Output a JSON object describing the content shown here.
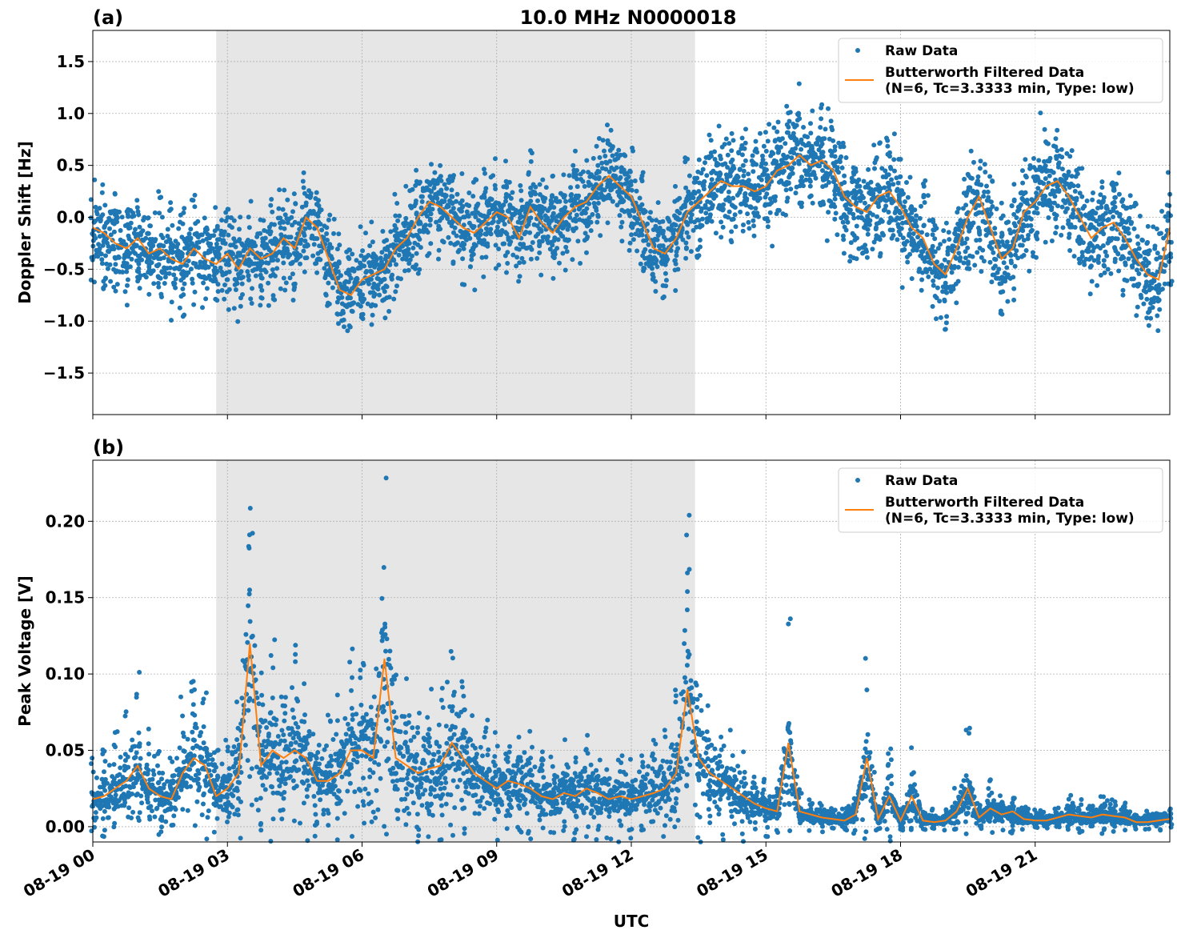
{
  "figure": {
    "title": "10.0 MHz N0000018",
    "xlabel": "UTC"
  },
  "colors": {
    "raw": "#1f77b4",
    "filtered": "#ff7f0e",
    "shade": "#e6e6e6",
    "grid": "#b0b0b0"
  },
  "chart_data": [
    {
      "type": "scatter",
      "panel_label": "(a)",
      "title": "10.0 MHz N0000018",
      "xlabel": "",
      "ylabel": "Doppler Shift [Hz]",
      "xlim_hours": [
        0,
        24
      ],
      "ylim": [
        -1.9,
        1.8
      ],
      "yticks": [
        -1.5,
        -1.0,
        -0.5,
        0.0,
        0.5,
        1.0,
        1.5
      ],
      "ytick_labels": [
        "−1.5",
        "−1.0",
        "−0.5",
        "0.0",
        "0.5",
        "1.0",
        "1.5"
      ],
      "xticks_hours": [
        0,
        3,
        6,
        9,
        12,
        15,
        18,
        21
      ],
      "xtick_labels": [
        "08-19 00",
        "08-19 03",
        "08-19 06",
        "08-19 09",
        "08-19 12",
        "08-19 15",
        "08-19 18",
        "08-19 21"
      ],
      "shaded_span_hours": [
        2.75,
        13.42
      ],
      "grid": true,
      "legend": {
        "placement": "top-right",
        "entries": [
          {
            "label": "Raw Data",
            "marker": "dot"
          },
          {
            "label": "Butterworth Filtered Data",
            "label2": "(N=6, Tc=3.3333 min, Type: low)",
            "marker": "line"
          }
        ]
      },
      "series": [
        {
          "name": "Butterworth Filtered Data",
          "x_hours": [
            0,
            0.25,
            0.5,
            0.75,
            1.0,
            1.25,
            1.5,
            1.75,
            2.0,
            2.25,
            2.5,
            2.75,
            3.0,
            3.25,
            3.5,
            3.75,
            4.0,
            4.25,
            4.5,
            4.75,
            5.0,
            5.25,
            5.5,
            5.75,
            6.0,
            6.25,
            6.5,
            6.75,
            7.0,
            7.25,
            7.5,
            7.75,
            8.0,
            8.25,
            8.5,
            8.75,
            9.0,
            9.25,
            9.5,
            9.75,
            10.0,
            10.25,
            10.5,
            10.75,
            11.0,
            11.25,
            11.5,
            11.75,
            12.0,
            12.25,
            12.5,
            12.75,
            13.0,
            13.25,
            13.5,
            13.75,
            14.0,
            14.25,
            14.5,
            14.75,
            15.0,
            15.25,
            15.5,
            15.75,
            16.0,
            16.25,
            16.5,
            16.75,
            17.0,
            17.25,
            17.5,
            17.75,
            18.0,
            18.25,
            18.5,
            18.75,
            19.0,
            19.25,
            19.5,
            19.75,
            20.0,
            20.25,
            20.5,
            20.75,
            21.0,
            21.25,
            21.5,
            21.75,
            22.0,
            22.25,
            22.5,
            22.75,
            23.0,
            23.25,
            23.5,
            23.75,
            24.0
          ],
          "y": [
            -0.1,
            -0.15,
            -0.25,
            -0.3,
            -0.2,
            -0.35,
            -0.3,
            -0.4,
            -0.45,
            -0.3,
            -0.4,
            -0.45,
            -0.35,
            -0.5,
            -0.3,
            -0.4,
            -0.35,
            -0.2,
            -0.3,
            0.0,
            -0.1,
            -0.4,
            -0.7,
            -0.75,
            -0.6,
            -0.55,
            -0.5,
            -0.3,
            -0.2,
            0.0,
            0.15,
            0.1,
            0.0,
            -0.1,
            -0.15,
            -0.05,
            0.05,
            0.0,
            -0.2,
            0.1,
            -0.05,
            -0.15,
            0.0,
            0.1,
            0.15,
            0.3,
            0.4,
            0.3,
            0.2,
            -0.05,
            -0.3,
            -0.35,
            -0.2,
            0.05,
            0.15,
            0.25,
            0.35,
            0.3,
            0.3,
            0.25,
            0.3,
            0.45,
            0.5,
            0.6,
            0.5,
            0.55,
            0.45,
            0.2,
            0.1,
            0.05,
            0.2,
            0.25,
            0.1,
            -0.1,
            -0.2,
            -0.45,
            -0.55,
            -0.3,
            0.0,
            0.2,
            -0.1,
            -0.4,
            -0.3,
            0.05,
            0.15,
            0.3,
            0.35,
            0.2,
            0.0,
            -0.2,
            -0.1,
            -0.05,
            -0.2,
            -0.4,
            -0.55,
            -0.6,
            -0.1
          ]
        }
      ]
    },
    {
      "type": "scatter",
      "panel_label": "(b)",
      "title": "",
      "xlabel": "UTC",
      "ylabel": "Peak Voltage [V]",
      "xlim_hours": [
        0,
        24
      ],
      "ylim": [
        -0.01,
        0.24
      ],
      "yticks": [
        0.0,
        0.05,
        0.1,
        0.15,
        0.2
      ],
      "ytick_labels": [
        "0.00",
        "0.05",
        "0.10",
        "0.15",
        "0.20"
      ],
      "xticks_hours": [
        0,
        3,
        6,
        9,
        12,
        15,
        18,
        21
      ],
      "xtick_labels": [
        "08-19 00",
        "08-19 03",
        "08-19 06",
        "08-19 09",
        "08-19 12",
        "08-19 15",
        "08-19 18",
        "08-19 21"
      ],
      "shaded_span_hours": [
        2.75,
        13.42
      ],
      "grid": true,
      "legend": {
        "placement": "top-right",
        "entries": [
          {
            "label": "Raw Data",
            "marker": "dot"
          },
          {
            "label": "Butterworth Filtered Data",
            "label2": "(N=6, Tc=3.3333 min, Type: low)",
            "marker": "line"
          }
        ]
      },
      "series": [
        {
          "name": "Butterworth Filtered Data",
          "x_hours": [
            0,
            0.25,
            0.5,
            0.75,
            1.0,
            1.25,
            1.5,
            1.75,
            2.0,
            2.25,
            2.5,
            2.75,
            3.0,
            3.25,
            3.5,
            3.75,
            4.0,
            4.25,
            4.5,
            4.75,
            5.0,
            5.25,
            5.5,
            5.75,
            6.0,
            6.25,
            6.5,
            6.75,
            7.0,
            7.25,
            7.5,
            7.75,
            8.0,
            8.25,
            8.5,
            8.75,
            9.0,
            9.25,
            9.5,
            9.75,
            10.0,
            10.25,
            10.5,
            10.75,
            11.0,
            11.25,
            11.5,
            11.75,
            12.0,
            12.25,
            12.5,
            12.75,
            13.0,
            13.25,
            13.5,
            13.75,
            14.0,
            14.25,
            14.5,
            14.75,
            15.0,
            15.25,
            15.5,
            15.75,
            16.0,
            16.25,
            16.5,
            16.75,
            17.0,
            17.25,
            17.5,
            17.75,
            18.0,
            18.25,
            18.5,
            18.75,
            19.0,
            19.25,
            19.5,
            19.75,
            20.0,
            20.25,
            20.5,
            20.75,
            21.0,
            21.25,
            21.5,
            21.75,
            22.0,
            22.25,
            22.5,
            22.75,
            23.0,
            23.25,
            23.5,
            23.75,
            24.0
          ],
          "y": [
            0.018,
            0.02,
            0.025,
            0.03,
            0.04,
            0.025,
            0.02,
            0.018,
            0.035,
            0.045,
            0.04,
            0.02,
            0.025,
            0.035,
            0.12,
            0.04,
            0.05,
            0.045,
            0.05,
            0.045,
            0.03,
            0.03,
            0.035,
            0.05,
            0.05,
            0.045,
            0.11,
            0.045,
            0.04,
            0.035,
            0.038,
            0.04,
            0.055,
            0.045,
            0.035,
            0.03,
            0.025,
            0.03,
            0.028,
            0.025,
            0.02,
            0.018,
            0.022,
            0.02,
            0.025,
            0.022,
            0.018,
            0.02,
            0.018,
            0.02,
            0.022,
            0.025,
            0.035,
            0.09,
            0.045,
            0.035,
            0.03,
            0.025,
            0.02,
            0.015,
            0.012,
            0.01,
            0.055,
            0.01,
            0.008,
            0.006,
            0.005,
            0.004,
            0.008,
            0.045,
            0.005,
            0.02,
            0.004,
            0.02,
            0.004,
            0.003,
            0.004,
            0.01,
            0.025,
            0.006,
            0.012,
            0.008,
            0.01,
            0.005,
            0.004,
            0.004,
            0.006,
            0.008,
            0.007,
            0.006,
            0.008,
            0.007,
            0.006,
            0.003,
            0.003,
            0.004,
            0.005
          ]
        }
      ]
    }
  ]
}
